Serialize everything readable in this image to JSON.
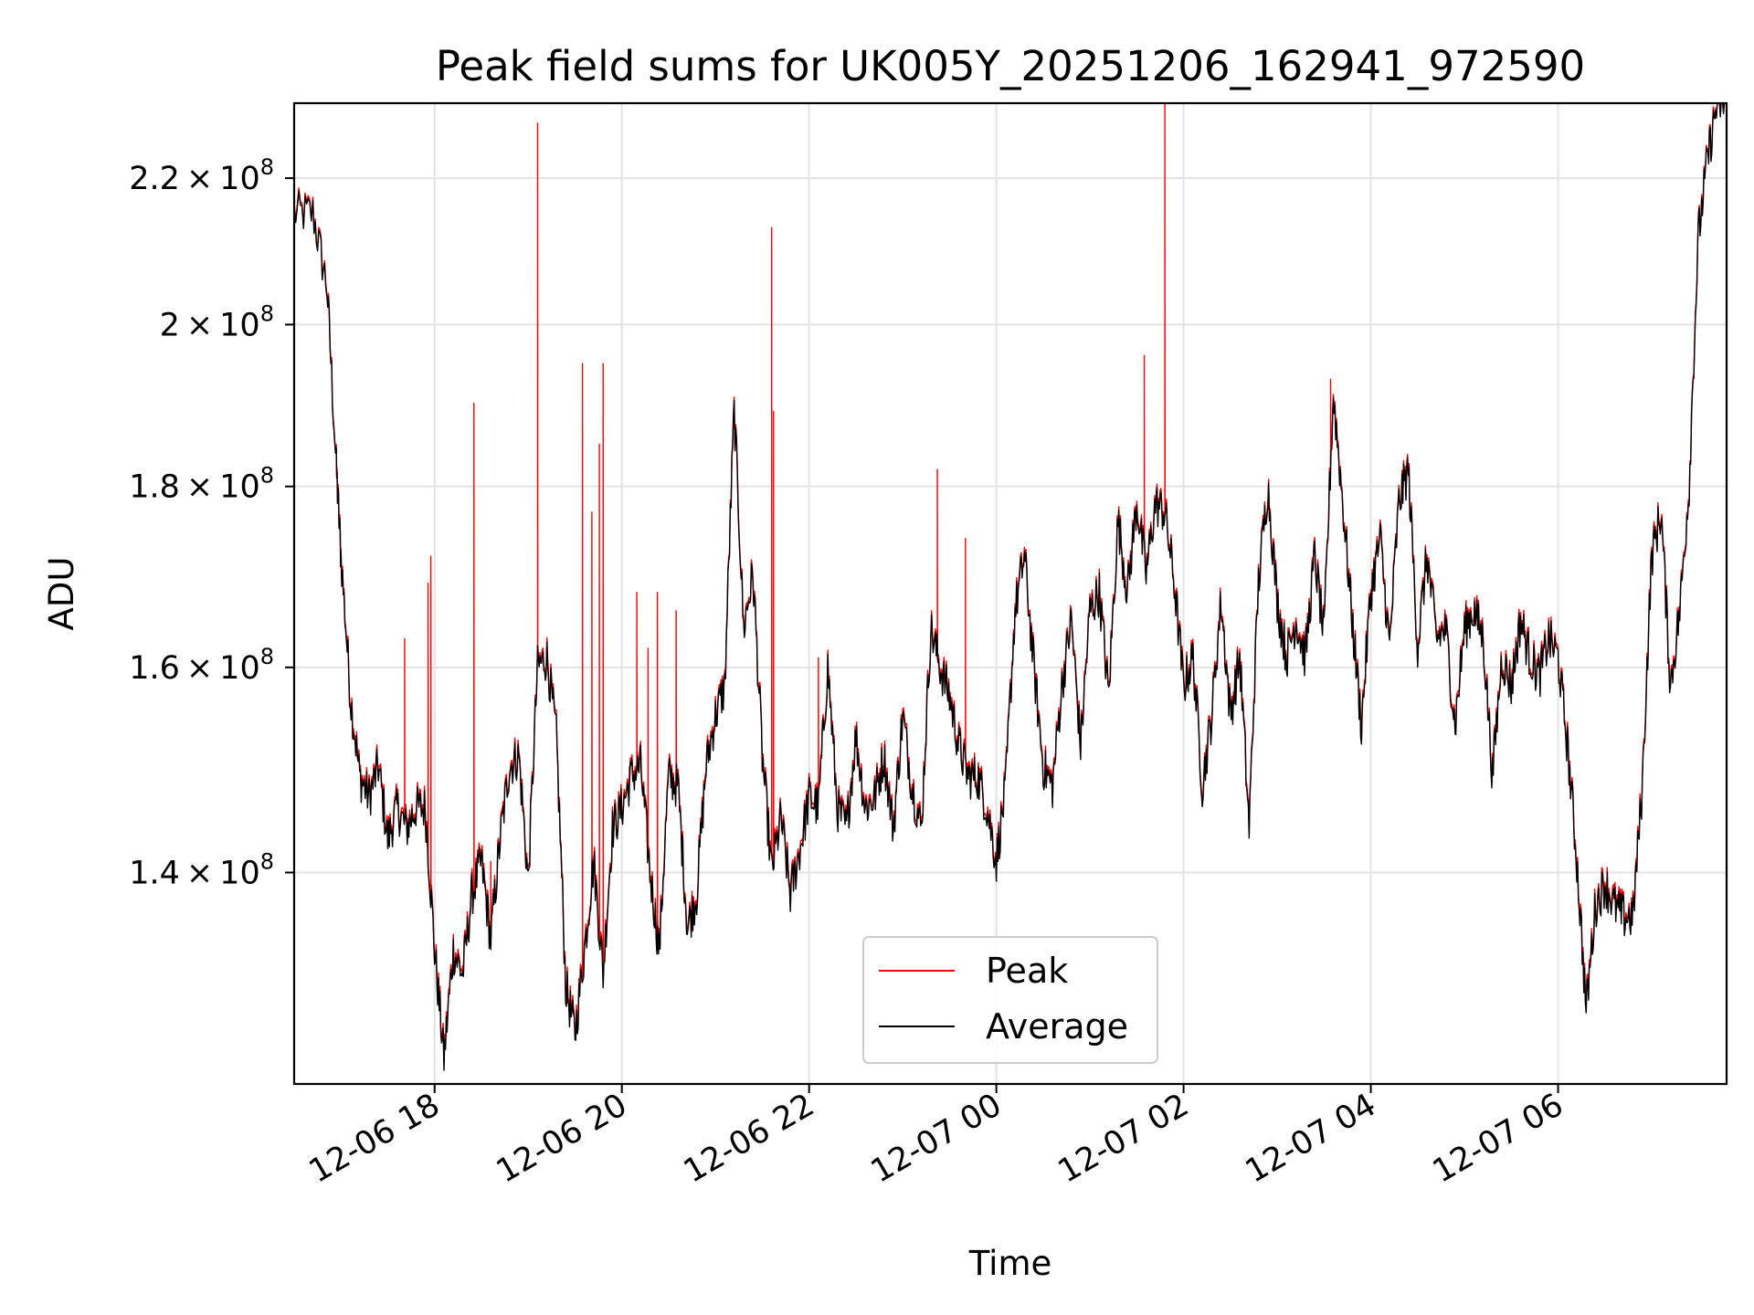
{
  "chart_data": {
    "type": "line",
    "title": "Peak field sums for UK005Y_20251206_162941_972590",
    "xlabel": "Time",
    "ylabel": "ADU",
    "x_unit": "hours since 2025-12-06 00:00",
    "xlim": [
      16.5,
      31.8
    ],
    "ylim": [
      122000000,
      231000000
    ],
    "y_scale": "log",
    "grid": true,
    "legend_position": "lower-center",
    "x_ticks": [
      {
        "value": 18,
        "label": "12-06 18"
      },
      {
        "value": 20,
        "label": "12-06 20"
      },
      {
        "value": 22,
        "label": "12-06 22"
      },
      {
        "value": 24,
        "label": "12-07 00"
      },
      {
        "value": 26,
        "label": "12-07 02"
      },
      {
        "value": 28,
        "label": "12-07 04"
      },
      {
        "value": 30,
        "label": "12-07 06"
      }
    ],
    "y_ticks": [
      {
        "value": 140000000,
        "mantissa": "1.4",
        "exponent": "8"
      },
      {
        "value": 160000000,
        "mantissa": "1.6",
        "exponent": "8"
      },
      {
        "value": 180000000,
        "mantissa": "1.8",
        "exponent": "8"
      },
      {
        "value": 200000000,
        "mantissa": "2",
        "exponent": "8"
      },
      {
        "value": 220000000,
        "mantissa": "2.2",
        "exponent": "8"
      }
    ],
    "series": [
      {
        "name": "Average",
        "color": "#000000",
        "x": [
          16.5,
          16.7,
          16.85,
          16.95,
          17.0,
          17.1,
          17.2,
          17.3,
          17.4,
          17.5,
          17.6,
          17.7,
          17.8,
          17.9,
          18.0,
          18.1,
          18.2,
          18.3,
          18.4,
          18.5,
          18.6,
          18.7,
          18.8,
          18.9,
          19.0,
          19.1,
          19.2,
          19.3,
          19.4,
          19.5,
          19.6,
          19.7,
          19.8,
          19.9,
          20.0,
          20.1,
          20.2,
          20.3,
          20.4,
          20.5,
          20.6,
          20.7,
          20.8,
          20.9,
          21.0,
          21.1,
          21.2,
          21.3,
          21.4,
          21.5,
          21.6,
          21.7,
          21.8,
          21.9,
          22.0,
          22.1,
          22.2,
          22.3,
          22.4,
          22.5,
          22.6,
          22.7,
          22.8,
          22.9,
          23.0,
          23.1,
          23.2,
          23.3,
          23.4,
          23.5,
          23.6,
          23.7,
          23.8,
          23.9,
          24.0,
          24.1,
          24.2,
          24.3,
          24.4,
          24.5,
          24.6,
          24.7,
          24.8,
          24.9,
          25.0,
          25.1,
          25.2,
          25.3,
          25.4,
          25.5,
          25.6,
          25.7,
          25.8,
          25.9,
          26.0,
          26.1,
          26.2,
          26.3,
          26.4,
          26.5,
          26.6,
          26.7,
          26.8,
          26.9,
          27.0,
          27.1,
          27.2,
          27.3,
          27.4,
          27.5,
          27.6,
          27.7,
          27.8,
          27.9,
          28.0,
          28.1,
          28.2,
          28.3,
          28.4,
          28.5,
          28.6,
          28.7,
          28.8,
          28.9,
          29.0,
          29.1,
          29.2,
          29.3,
          29.4,
          29.5,
          29.6,
          29.7,
          29.8,
          29.9,
          30.0,
          30.1,
          30.2,
          30.3,
          30.4,
          30.5,
          30.6,
          30.7,
          30.8,
          30.9,
          31.0,
          31.1,
          31.2,
          31.3,
          31.4,
          31.5,
          31.6,
          31.7,
          31.8
        ],
        "values": [
          215000000,
          215000000,
          205000000,
          182000000,
          172000000,
          157000000,
          149000000,
          147000000,
          150000000,
          143000000,
          146000000,
          144000000,
          146000000,
          146000000,
          133000000,
          124000000,
          133000000,
          131000000,
          138000000,
          141000000,
          134000000,
          143000000,
          150000000,
          151000000,
          139000000,
          160000000,
          161000000,
          153000000,
          130000000,
          126000000,
          133000000,
          141000000,
          131000000,
          144000000,
          146000000,
          149000000,
          150000000,
          140000000,
          133000000,
          149000000,
          148000000,
          135000000,
          138000000,
          150000000,
          155000000,
          158000000,
          189000000,
          164000000,
          170000000,
          151000000,
          140000000,
          145000000,
          138000000,
          142000000,
          147000000,
          146000000,
          160000000,
          146000000,
          144000000,
          153000000,
          146000000,
          147000000,
          151000000,
          144000000,
          155000000,
          148000000,
          144000000,
          164000000,
          160000000,
          157000000,
          152000000,
          149000000,
          149000000,
          146000000,
          141000000,
          148000000,
          166000000,
          172000000,
          160000000,
          150000000,
          148000000,
          158000000,
          165000000,
          152000000,
          166000000,
          168000000,
          157000000,
          176000000,
          168000000,
          178000000,
          170000000,
          178000000,
          177000000,
          169000000,
          158000000,
          161000000,
          148000000,
          155000000,
          167000000,
          155000000,
          161000000,
          144000000,
          169000000,
          180000000,
          167000000,
          161000000,
          165000000,
          161000000,
          172000000,
          163000000,
          191000000,
          178000000,
          165000000,
          154000000,
          168000000,
          174000000,
          162000000,
          178000000,
          182000000,
          162000000,
          172000000,
          163000000,
          164000000,
          154000000,
          164000000,
          166000000,
          163000000,
          149000000,
          161000000,
          158000000,
          165000000,
          161000000,
          159000000,
          163000000,
          161000000,
          152000000,
          141000000,
          128000000,
          137000000,
          139000000,
          137000000,
          136000000,
          136000000,
          148000000,
          172000000,
          177000000,
          158000000,
          166000000,
          180000000,
          212000000,
          223000000,
          231000000,
          231000000
        ]
      },
      {
        "name": "Peak",
        "color": "#ff0000",
        "offset": 400000,
        "spikes": [
          {
            "x": 17.68,
            "value": 163000000
          },
          {
            "x": 17.93,
            "value": 169000000
          },
          {
            "x": 17.96,
            "value": 172000000
          },
          {
            "x": 18.42,
            "value": 190000000
          },
          {
            "x": 18.6,
            "value": 141000000
          },
          {
            "x": 19.1,
            "value": 228000000
          },
          {
            "x": 19.58,
            "value": 195000000
          },
          {
            "x": 19.68,
            "value": 177000000
          },
          {
            "x": 19.76,
            "value": 185000000
          },
          {
            "x": 19.8,
            "value": 195000000
          },
          {
            "x": 20.08,
            "value": 150000000
          },
          {
            "x": 20.16,
            "value": 168000000
          },
          {
            "x": 20.28,
            "value": 162000000
          },
          {
            "x": 20.38,
            "value": 168000000
          },
          {
            "x": 20.58,
            "value": 166000000
          },
          {
            "x": 21.6,
            "value": 213000000
          },
          {
            "x": 21.62,
            "value": 189000000
          },
          {
            "x": 22.1,
            "value": 161000000
          },
          {
            "x": 23.37,
            "value": 182000000
          },
          {
            "x": 23.67,
            "value": 174000000
          },
          {
            "x": 25.58,
            "value": 196000000
          },
          {
            "x": 25.8,
            "value": 231000000
          },
          {
            "x": 27.57,
            "value": 193000000
          }
        ]
      }
    ]
  },
  "legend": {
    "items": [
      {
        "label": "Peak",
        "color": "#ff0000"
      },
      {
        "label": "Average",
        "color": "#000000"
      }
    ]
  }
}
